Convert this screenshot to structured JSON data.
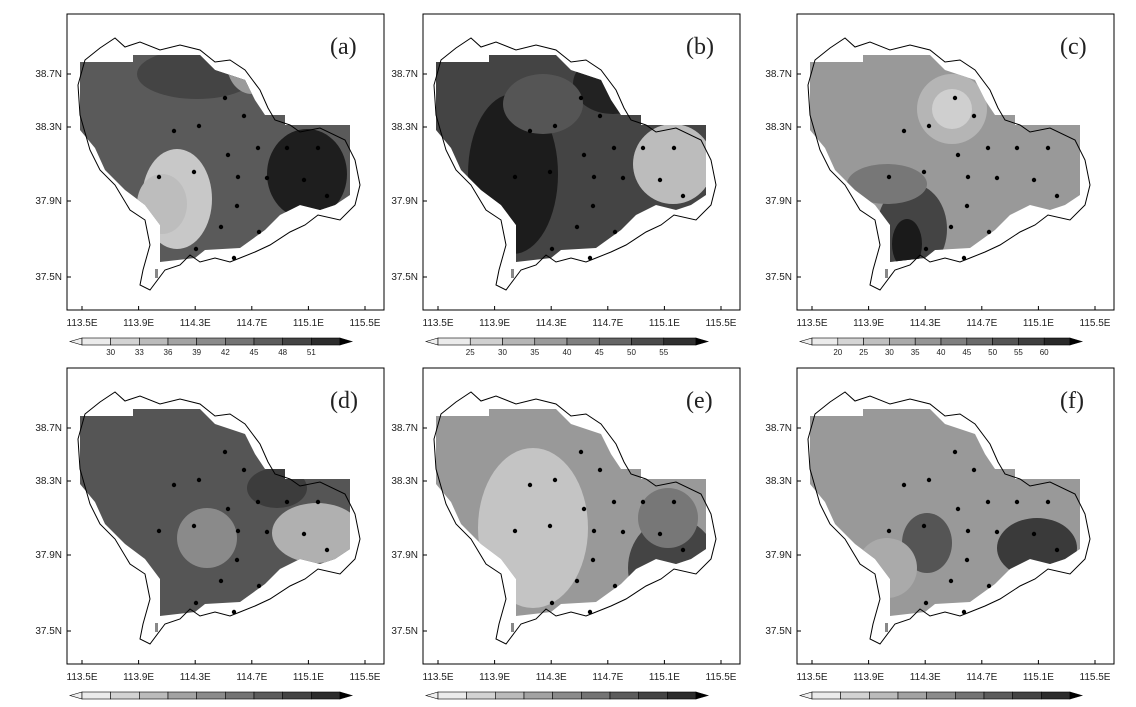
{
  "panels": [
    {
      "label": "(a)",
      "colorbar": [
        30,
        33,
        36,
        39,
        42,
        45,
        48,
        51
      ]
    },
    {
      "label": "(b)",
      "colorbar": [
        25,
        30,
        35,
        40,
        45,
        50,
        55
      ]
    },
    {
      "label": "(c)",
      "colorbar": [
        20,
        25,
        30,
        35,
        40,
        45,
        50,
        55,
        60
      ]
    },
    {
      "label": "(d)"
    },
    {
      "label": "(e)"
    },
    {
      "label": "(f)"
    }
  ],
  "y_ticks": [
    "38.7N",
    "38.3N",
    "37.9N",
    "37.5N"
  ],
  "x_ticks": [
    "113.5E",
    "113.9E",
    "114.3E",
    "114.7E",
    "115.1E",
    "115.5E"
  ]
}
